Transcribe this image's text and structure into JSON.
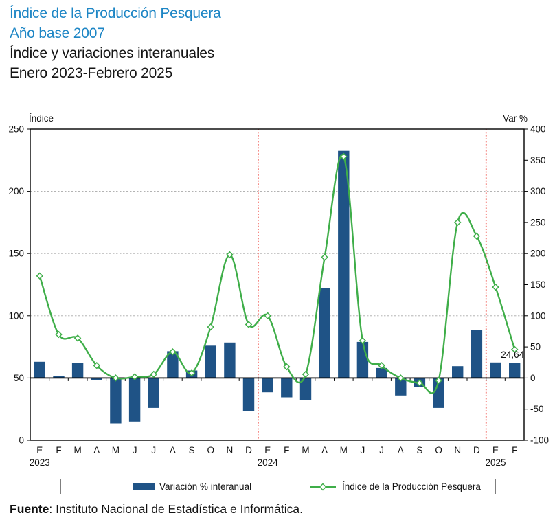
{
  "header": {
    "title_line1": "Índice de la Producción Pesquera",
    "title_line2": "Año base 2007",
    "subtitle_line1": "Índice y variaciones interanuales",
    "subtitle_line2": "Enero 2023-Febrero 2025"
  },
  "chart_data": {
    "type": "combo bar+line, dual axis",
    "left_axis": {
      "title": "Índice",
      "min": 0,
      "max": 250,
      "ticks": [
        0,
        50,
        100,
        150,
        200,
        250
      ]
    },
    "right_axis": {
      "title": "Var %",
      "min": -100,
      "max": 400,
      "ticks": [
        400,
        350,
        300,
        250,
        200,
        150,
        100,
        50,
        0,
        -50,
        -100
      ]
    },
    "gridlines_at_index": [
      100,
      150,
      200
    ],
    "categories": [
      "E",
      "F",
      "M",
      "A",
      "M",
      "J",
      "J",
      "A",
      "S",
      "O",
      "N",
      "D",
      "E",
      "F",
      "M",
      "A",
      "M",
      "J",
      "J",
      "A",
      "S",
      "O",
      "N",
      "D",
      "E",
      "F"
    ],
    "year_labels": [
      {
        "text": "2023",
        "month_index": 0
      },
      {
        "text": "2024",
        "month_index": 12
      },
      {
        "text": "2025",
        "month_index": 24
      }
    ],
    "year_separators_after_index": [
      11,
      23
    ],
    "separator_color": "#EE3B33",
    "legend_position": "bottom",
    "series": [
      {
        "name": "Variación % interanual",
        "type": "bar",
        "axis": "right",
        "color": "#1F5386",
        "values": [
          26,
          3,
          24,
          -3,
          -73,
          -70,
          -48,
          43,
          12,
          52,
          57,
          -53,
          -23,
          -31,
          -36,
          144,
          365,
          58,
          16,
          -28,
          -15,
          -48,
          19,
          77,
          25,
          24.64
        ]
      },
      {
        "name": "Índice de la Producción Pesquera",
        "type": "line",
        "axis": "left",
        "marker": "diamond",
        "color": "#3FAE49",
        "values": [
          132,
          85,
          82,
          60,
          50,
          51,
          53,
          71,
          54,
          91,
          149,
          93,
          100,
          59,
          53,
          147,
          228,
          80,
          60,
          50,
          46,
          48,
          175,
          164,
          123,
          73
        ]
      }
    ],
    "annotation": {
      "text": "24,64",
      "month_index": 25,
      "series": "Variación % interanual"
    }
  },
  "footer": {
    "source_label": "Fuente",
    "source_text": ": Instituto Nacional de Estadística e Informática."
  }
}
